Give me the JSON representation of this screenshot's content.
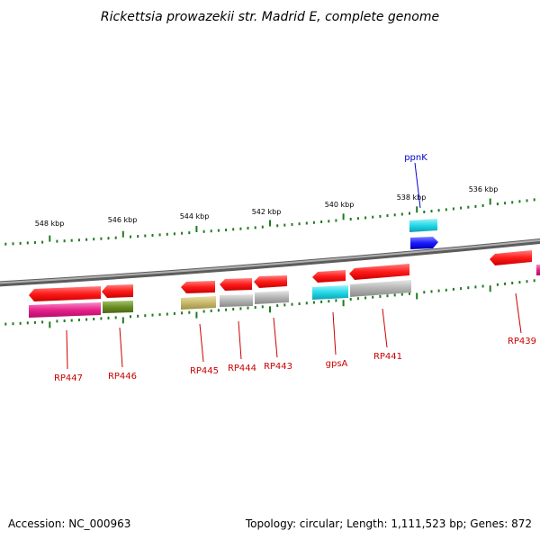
{
  "title": "Rickettsia prowazekii str. Madrid E, complete genome",
  "footer": {
    "accession": "Accession: NC_000963",
    "info": "Topology: circular; Length: 1,111,523 bp; Genes: 872"
  },
  "scale_labels": [
    "548 kbp",
    "546 kbp",
    "544 kbp",
    "542 kbp",
    "540 kbp",
    "538 kbp",
    "536 kbp"
  ],
  "colors": {
    "backbone": "#8a8a8a",
    "tick": "#1f7a1f",
    "label_red": "#cc0000",
    "label_blue": "#0000cc",
    "feature_red": "#ff1a1a",
    "magenta": "#e8208a",
    "olive": "#6b8e23",
    "khaki": "#c8b96a",
    "gray": "#b4b4b4",
    "cyan": "#22d8e8",
    "blue": "#1a1aff"
  },
  "genes": [
    {
      "name": "RP447",
      "color": "label_red"
    },
    {
      "name": "RP446",
      "color": "label_red"
    },
    {
      "name": "RP445",
      "color": "label_red"
    },
    {
      "name": "RP444",
      "color": "label_red"
    },
    {
      "name": "RP443",
      "color": "label_red"
    },
    {
      "name": "gpsA",
      "color": "label_red"
    },
    {
      "name": "RP441",
      "color": "label_red"
    },
    {
      "name": "RP439",
      "color": "label_red"
    },
    {
      "name": "ppnK",
      "color": "label_blue"
    }
  ]
}
